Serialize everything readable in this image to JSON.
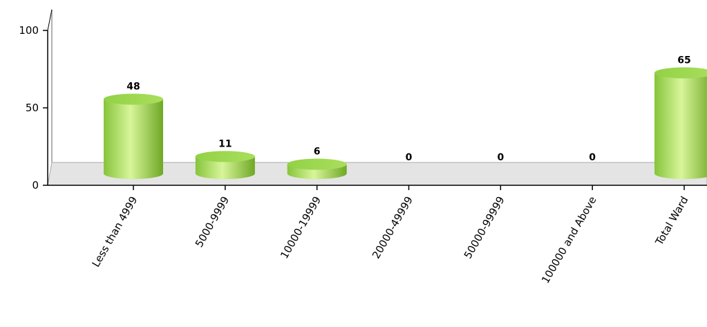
{
  "chart_data": {
    "type": "bar",
    "style": "3d-cylinder",
    "categories": [
      "Less than 4999",
      "5000-9999",
      "10000-19999",
      "20000-49999",
      "50000-99999",
      "100000 and Above",
      "Total Ward"
    ],
    "values": [
      48,
      11,
      6,
      0,
      0,
      0,
      65
    ],
    "data_labels": [
      "48",
      "11",
      "6",
      "0",
      "0",
      "0",
      "65"
    ],
    "y_ticks": [
      "0",
      "50",
      "100"
    ],
    "ylim": [
      0,
      100
    ],
    "title": "",
    "xlabel": "",
    "ylabel": "",
    "grid": false,
    "legend": "none",
    "colors": {
      "bar_light": "#d8f59a",
      "bar_mid": "#a6dc55",
      "bar_dark": "#6ea825",
      "bar_top": "#9ad84a",
      "floor": "#e4e4e4",
      "floor_edge": "#a8a8a8",
      "axis": "#000000"
    }
  }
}
